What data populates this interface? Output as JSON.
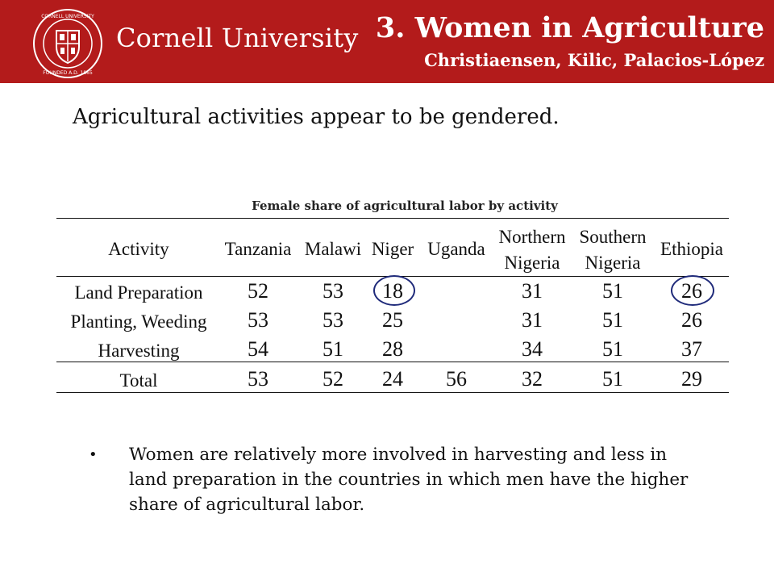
{
  "header": {
    "university_name": "Cornell University",
    "seal_label": "CORNELL UNIVERSITY FOUNDED A.D. 1865",
    "title": "3. Women in Agriculture",
    "subtitle": "Christiaensen, Kilic, Palacios-López",
    "brand_color": "#b31b1b"
  },
  "lead_text": "Agricultural activities appear to be gendered.",
  "table": {
    "caption": "Female share of agricultural labor by activity",
    "headers": [
      {
        "line1": "Activity",
        "line2": ""
      },
      {
        "line1": "Tanzania",
        "line2": ""
      },
      {
        "line1": "Malawi",
        "line2": ""
      },
      {
        "line1": "Niger",
        "line2": ""
      },
      {
        "line1": "Uganda",
        "line2": ""
      },
      {
        "line1": "Northern",
        "line2": "Nigeria"
      },
      {
        "line1": "Southern",
        "line2": "Nigeria"
      },
      {
        "line1": "Ethiopia",
        "line2": ""
      }
    ],
    "rows": [
      {
        "activity": "Land Preparation",
        "values": [
          "52",
          "53",
          "18",
          "",
          "31",
          "51",
          "26"
        ]
      },
      {
        "activity": "Planting, Weeding",
        "values": [
          "53",
          "53",
          "25",
          "",
          "31",
          "51",
          "26"
        ]
      },
      {
        "activity": "Harvesting",
        "values": [
          "54",
          "51",
          "28",
          "",
          "34",
          "51",
          "37"
        ]
      },
      {
        "activity": "Total",
        "values": [
          "53",
          "52",
          "24",
          "56",
          "32",
          "51",
          "29"
        ]
      }
    ],
    "highlight_color": "#1f2a7a"
  },
  "bullet": {
    "text": "Women are relatively more involved in harvesting and less in land preparation in the countries in which men have the higher share of agricultural labor."
  }
}
